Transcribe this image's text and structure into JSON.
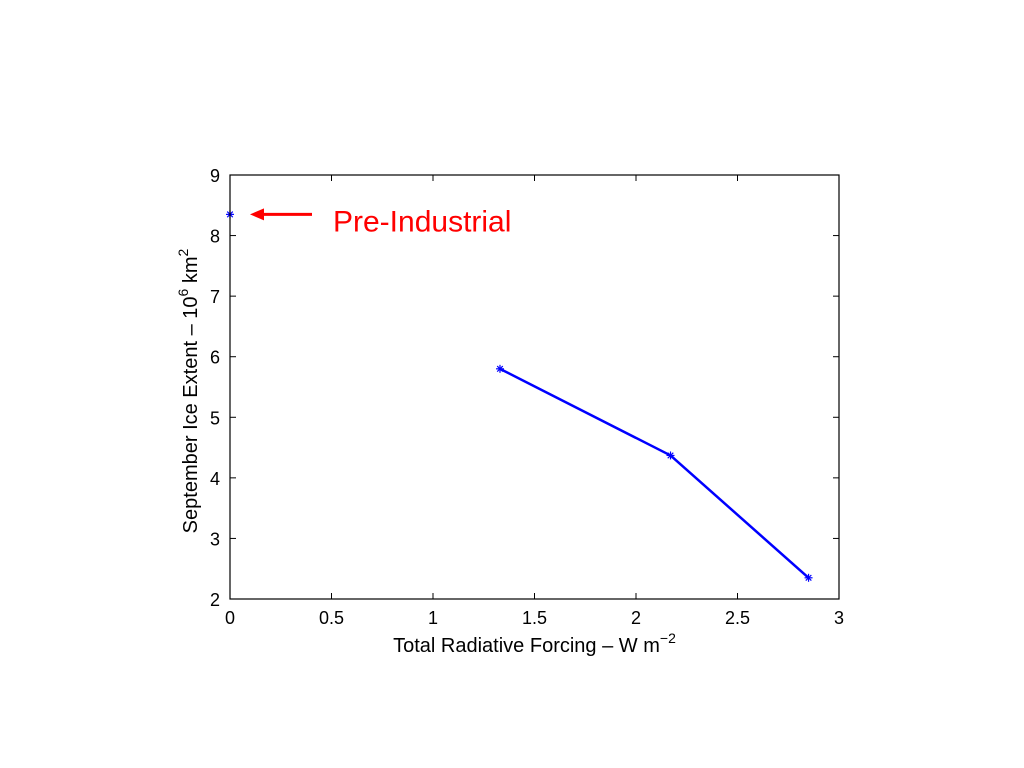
{
  "chart_data": {
    "type": "line",
    "title": "",
    "xlabel": {
      "prefix": "Total Radiative Forcing – W m",
      "superscript": "−2"
    },
    "ylabel": {
      "prefix": "September Ice Extent – 10",
      "superscript_1": "6",
      "middle": " km",
      "superscript_2": "2"
    },
    "xlim": [
      0,
      3
    ],
    "ylim": [
      2,
      9
    ],
    "xticks": [
      0,
      0.5,
      1,
      1.5,
      2,
      2.5,
      3
    ],
    "xtick_labels": [
      "0",
      "0.5",
      "1",
      "1.5",
      "2",
      "2.5",
      "3"
    ],
    "yticks": [
      2,
      3,
      4,
      5,
      6,
      7,
      8,
      9
    ],
    "ytick_labels": [
      "2",
      "3",
      "4",
      "5",
      "6",
      "7",
      "8",
      "9"
    ],
    "grid": false,
    "legend": "none",
    "series": [
      {
        "x": [
          1.33,
          2.17,
          2.85
        ],
        "y": [
          5.8,
          4.37,
          2.35
        ],
        "color": "#0000ff",
        "marker": "star"
      },
      {
        "x": [
          0.0
        ],
        "y": [
          8.35
        ],
        "color": "#0000ff",
        "marker": "star"
      }
    ],
    "annotations": [
      {
        "text": "Pre-Industrial",
        "color": "#ff0000",
        "points_to": {
          "x": 0.0,
          "y": 8.35
        }
      }
    ]
  }
}
